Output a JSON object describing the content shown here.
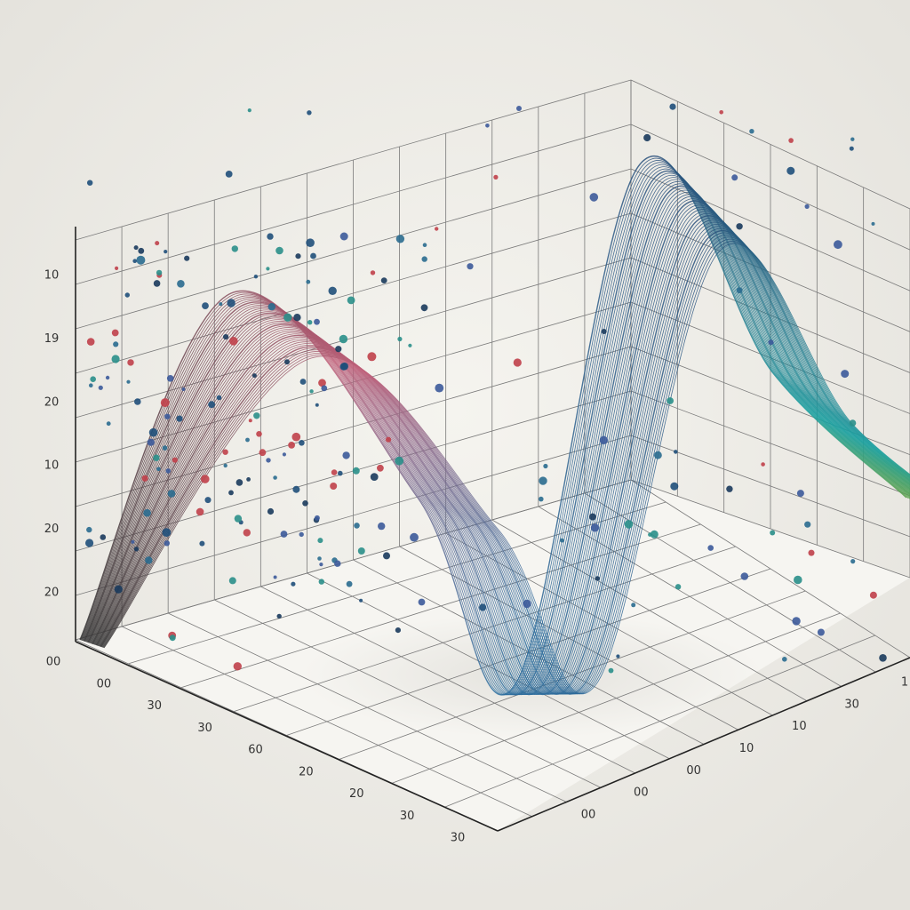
{
  "labels": {
    "left": [
      "10",
      "19",
      "20",
      "10",
      "20",
      "20"
    ],
    "front": [
      "00",
      "00",
      "30",
      "30",
      "60",
      "20",
      "20",
      "30",
      "30"
    ],
    "right": [
      "00",
      "00",
      "00",
      "10",
      "10",
      "30",
      "1"
    ]
  }
}
